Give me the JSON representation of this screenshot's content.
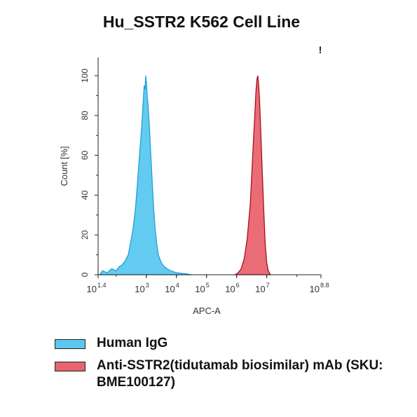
{
  "chart_data": {
    "type": "area",
    "title": "Hu_SSTR2 K562 Cell Line",
    "xlabel": "APC-A",
    "ylabel": "Count [%]",
    "x_scale": "log10",
    "xlim": [
      1.4,
      8.8
    ],
    "ylim": [
      0,
      100
    ],
    "yticks": [
      0,
      20,
      40,
      60,
      80,
      100
    ],
    "xtick_labels": [
      {
        "base": "10",
        "exp": "1.4",
        "pos": 1.4
      },
      {
        "base": "10",
        "exp": "3",
        "pos": 3
      },
      {
        "base": "10",
        "exp": "4",
        "pos": 4
      },
      {
        "base": "10",
        "exp": "5",
        "pos": 5
      },
      {
        "base": "10",
        "exp": "6",
        "pos": 6
      },
      {
        "base": "10",
        "exp": "7",
        "pos": 7
      },
      {
        "base": "10",
        "exp": "8.8",
        "pos": 8.8
      }
    ],
    "series": [
      {
        "name": "Human IgG",
        "color": "#5bc8ee",
        "edge": "#1fa0d8",
        "points": [
          [
            1.45,
            0
          ],
          [
            1.55,
            2
          ],
          [
            1.7,
            1
          ],
          [
            1.85,
            3
          ],
          [
            2.0,
            2
          ],
          [
            2.1,
            4
          ],
          [
            2.2,
            5
          ],
          [
            2.3,
            7
          ],
          [
            2.4,
            10
          ],
          [
            2.45,
            14
          ],
          [
            2.5,
            18
          ],
          [
            2.55,
            22
          ],
          [
            2.6,
            28
          ],
          [
            2.65,
            35
          ],
          [
            2.7,
            45
          ],
          [
            2.75,
            55
          ],
          [
            2.8,
            65
          ],
          [
            2.85,
            75
          ],
          [
            2.9,
            88
          ],
          [
            2.93,
            95
          ],
          [
            2.96,
            93
          ],
          [
            2.98,
            100
          ],
          [
            3.0,
            97
          ],
          [
            3.03,
            90
          ],
          [
            3.06,
            85
          ],
          [
            3.1,
            75
          ],
          [
            3.15,
            60
          ],
          [
            3.2,
            45
          ],
          [
            3.25,
            32
          ],
          [
            3.3,
            22
          ],
          [
            3.35,
            15
          ],
          [
            3.4,
            10
          ],
          [
            3.5,
            6
          ],
          [
            3.6,
            4
          ],
          [
            3.7,
            3
          ],
          [
            3.8,
            2
          ],
          [
            4.0,
            1
          ],
          [
            4.3,
            0.5
          ],
          [
            4.5,
            0
          ]
        ]
      },
      {
        "name": "Anti-SSTR2(tidutamab biosimilar) mAb (SKU: BME100127)",
        "color": "#e8646f",
        "edge": "#a8101c",
        "points": [
          [
            5.95,
            0
          ],
          [
            6.05,
            1
          ],
          [
            6.15,
            3
          ],
          [
            6.25,
            8
          ],
          [
            6.35,
            18
          ],
          [
            6.45,
            35
          ],
          [
            6.5,
            50
          ],
          [
            6.55,
            65
          ],
          [
            6.6,
            80
          ],
          [
            6.64,
            92
          ],
          [
            6.67,
            98
          ],
          [
            6.7,
            100
          ],
          [
            6.73,
            96
          ],
          [
            6.76,
            88
          ],
          [
            6.8,
            72
          ],
          [
            6.85,
            52
          ],
          [
            6.9,
            32
          ],
          [
            6.95,
            15
          ],
          [
            7.0,
            6
          ],
          [
            7.05,
            2
          ],
          [
            7.12,
            0
          ]
        ]
      }
    ]
  },
  "legend": {
    "items": [
      {
        "label": "Human IgG",
        "color": "#5bc8ee"
      },
      {
        "label": "Anti-SSTR2(tidutamab biosimilar) mAb (SKU: BME100127)",
        "color": "#e8646f"
      }
    ]
  },
  "marker": "!"
}
